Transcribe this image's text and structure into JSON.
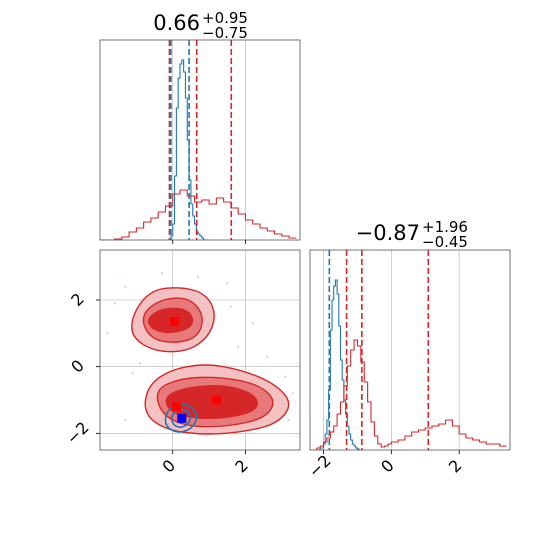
{
  "colors": {
    "red": "#d62728",
    "red_mid": "#e8797a",
    "red_light": "#f3c1c1",
    "blue": "#1f77b4",
    "blue_marker": "#0000ff",
    "red_marker": "#ff0000",
    "grid": "#b0b0b0",
    "axis": "#000000"
  },
  "chart_data": [
    {
      "type": "line",
      "panel": "marginal-x",
      "title_main": "0.66",
      "title_sup": "+0.95",
      "title_sub": "−0.75",
      "xlim": [
        -2.0,
        3.5
      ],
      "ylim": [
        0,
        1
      ],
      "grid": true,
      "series": [
        {
          "color": "blue",
          "step_x": [
            -0.1,
            -0.05,
            0.0,
            0.05,
            0.1,
            0.15,
            0.2,
            0.25,
            0.3,
            0.35,
            0.4,
            0.45,
            0.5,
            0.55,
            0.6,
            0.65,
            0.7,
            0.75,
            0.8,
            0.85,
            0.9,
            0.95
          ],
          "step_y": [
            0.0,
            0.02,
            0.08,
            0.32,
            0.66,
            0.81,
            0.88,
            0.9,
            0.84,
            0.71,
            0.5,
            0.3,
            0.18,
            0.12,
            0.08,
            0.04,
            0.03,
            0.02,
            0.01,
            0.0,
            0.0,
            0.0
          ],
          "lines_x": [
            -0.05,
            0.45
          ],
          "line_style": "dashed"
        },
        {
          "color": "red",
          "step_x": [
            -2.0,
            -1.8,
            -1.6,
            -1.4,
            -1.2,
            -1.0,
            -0.8,
            -0.6,
            -0.4,
            -0.2,
            0.0,
            0.2,
            0.4,
            0.6,
            0.8,
            1.0,
            1.2,
            1.4,
            1.6,
            1.8,
            2.0,
            2.2,
            2.4,
            2.6,
            2.8,
            3.0,
            3.2
          ],
          "step_y": [
            0.0,
            0.0,
            0.005,
            0.015,
            0.04,
            0.06,
            0.09,
            0.11,
            0.14,
            0.17,
            0.23,
            0.25,
            0.22,
            0.19,
            0.2,
            0.18,
            0.21,
            0.19,
            0.16,
            0.13,
            0.1,
            0.08,
            0.06,
            0.045,
            0.03,
            0.02,
            0.01
          ],
          "lines_x": [
            -0.09,
            0.66,
            1.61
          ],
          "line_style": "dashed"
        }
      ]
    },
    {
      "type": "line",
      "panel": "marginal-y",
      "title_main": "−0.87",
      "title_sup": "+1.96",
      "title_sub": "−0.45",
      "xlim": [
        -2.4,
        3.5
      ],
      "ylim": [
        0,
        1
      ],
      "xticks": [
        -2,
        0,
        2
      ],
      "xtick_labels": [
        "−2",
        "0",
        "2"
      ],
      "grid": true,
      "series": [
        {
          "color": "blue",
          "step_x": [
            -2.2,
            -2.1,
            -2.0,
            -1.95,
            -1.9,
            -1.85,
            -1.8,
            -1.75,
            -1.7,
            -1.65,
            -1.6,
            -1.55,
            -1.5,
            -1.45,
            -1.4,
            -1.35,
            -1.3,
            -1.25,
            -1.2,
            -1.15,
            -1.1,
            -1.05,
            -1.0,
            -0.95
          ],
          "step_y": [
            0.0,
            0.01,
            0.03,
            0.08,
            0.15,
            0.3,
            0.6,
            0.75,
            0.82,
            0.85,
            0.78,
            0.62,
            0.45,
            0.35,
            0.25,
            0.18,
            0.12,
            0.08,
            0.05,
            0.03,
            0.02,
            0.01,
            0.005,
            0.0
          ],
          "lines_x": [
            -1.83
          ],
          "line_style": "dashed"
        },
        {
          "color": "red",
          "step_x": [
            -2.3,
            -2.2,
            -2.1,
            -2.0,
            -1.9,
            -1.8,
            -1.7,
            -1.6,
            -1.5,
            -1.4,
            -1.3,
            -1.2,
            -1.1,
            -1.0,
            -0.9,
            -0.8,
            -0.7,
            -0.6,
            -0.5,
            -0.4,
            -0.3,
            -0.2,
            -0.1,
            0.0,
            0.2,
            0.4,
            0.6,
            0.8,
            1.0,
            1.2,
            1.4,
            1.6,
            1.8,
            2.0,
            2.2,
            2.4,
            2.6,
            2.8,
            3.0,
            3.2
          ],
          "step_y": [
            0.0,
            0.01,
            0.02,
            0.04,
            0.06,
            0.09,
            0.12,
            0.18,
            0.24,
            0.32,
            0.42,
            0.5,
            0.55,
            0.52,
            0.44,
            0.34,
            0.24,
            0.14,
            0.07,
            0.03,
            0.015,
            0.02,
            0.03,
            0.04,
            0.05,
            0.07,
            0.09,
            0.1,
            0.11,
            0.12,
            0.13,
            0.15,
            0.12,
            0.08,
            0.06,
            0.05,
            0.04,
            0.03,
            0.03,
            0.02
          ],
          "lines_x": [
            -1.32,
            -0.87,
            1.09
          ],
          "line_style": "dashed"
        }
      ]
    },
    {
      "type": "scatter",
      "panel": "joint",
      "xlim": [
        -2.0,
        3.5
      ],
      "ylim": [
        -2.5,
        3.5
      ],
      "xticks": [
        0,
        2
      ],
      "xtick_labels": [
        "0",
        "2"
      ],
      "yticks": [
        -2,
        0,
        2
      ],
      "ytick_labels": [
        "−2",
        "0",
        "2"
      ],
      "grid": true,
      "red_contours": [
        {
          "level": "outer",
          "blobs": [
            [
              [
                -1.1,
                1.6
              ],
              [
                -0.6,
                2.3
              ],
              [
                0.2,
                2.4
              ],
              [
                0.9,
                2.2
              ],
              [
                1.2,
                1.6
              ],
              [
                1.0,
                0.9
              ],
              [
                0.4,
                0.45
              ],
              [
                -0.5,
                0.45
              ],
              [
                -1.15,
                0.9
              ]
            ],
            [
              [
                -0.7,
                -0.6
              ],
              [
                -0.1,
                -0.1
              ],
              [
                0.9,
                0.1
              ],
              [
                1.9,
                -0.1
              ],
              [
                2.8,
                -0.5
              ],
              [
                3.3,
                -1.1
              ],
              [
                2.9,
                -1.7
              ],
              [
                2.0,
                -1.95
              ],
              [
                0.9,
                -2.05
              ],
              [
                -0.2,
                -1.9
              ],
              [
                -0.8,
                -1.4
              ]
            ]
          ]
        },
        {
          "level": "middle",
          "blobs": [
            [
              [
                -0.9,
                1.5
              ],
              [
                -0.4,
                2.0
              ],
              [
                0.4,
                2.1
              ],
              [
                0.85,
                1.6
              ],
              [
                0.75,
                0.95
              ],
              [
                0.2,
                0.7
              ],
              [
                -0.6,
                0.8
              ]
            ],
            [
              [
                -0.5,
                -0.7
              ],
              [
                0.2,
                -0.35
              ],
              [
                1.2,
                -0.3
              ],
              [
                2.3,
                -0.5
              ],
              [
                2.85,
                -1.0
              ],
              [
                2.55,
                -1.55
              ],
              [
                1.5,
                -1.8
              ],
              [
                0.4,
                -1.8
              ],
              [
                -0.3,
                -1.45
              ]
            ]
          ]
        },
        {
          "level": "inner",
          "blobs": [
            [
              [
                -0.7,
                1.45
              ],
              [
                -0.3,
                1.75
              ],
              [
                0.35,
                1.75
              ],
              [
                0.6,
                1.4
              ],
              [
                0.4,
                1.1
              ],
              [
                -0.2,
                1.0
              ],
              [
                -0.6,
                1.15
              ]
            ],
            [
              [
                -0.2,
                -0.85
              ],
              [
                0.5,
                -0.6
              ],
              [
                1.5,
                -0.55
              ],
              [
                2.3,
                -0.85
              ],
              [
                2.35,
                -1.3
              ],
              [
                1.5,
                -1.55
              ],
              [
                0.5,
                -1.55
              ],
              [
                -0.15,
                -1.3
              ]
            ]
          ]
        }
      ],
      "blue_contours": [
        [
          [
            -0.2,
            -1.4
          ],
          [
            0.1,
            -1.1
          ],
          [
            0.45,
            -1.15
          ],
          [
            0.7,
            -1.45
          ],
          [
            0.55,
            -1.85
          ],
          [
            0.15,
            -2.0
          ],
          [
            -0.2,
            -1.8
          ]
        ],
        [
          [
            -0.05,
            -1.45
          ],
          [
            0.2,
            -1.25
          ],
          [
            0.45,
            -1.35
          ],
          [
            0.5,
            -1.65
          ],
          [
            0.25,
            -1.85
          ],
          [
            0.0,
            -1.75
          ]
        ]
      ],
      "markers": [
        {
          "x": 0.05,
          "y": 1.35,
          "color": "red_marker"
        },
        {
          "x": 0.1,
          "y": -1.2,
          "color": "red_marker"
        },
        {
          "x": 1.2,
          "y": -1.0,
          "color": "red_marker"
        },
        {
          "x": 0.25,
          "y": -1.55,
          "color": "blue_marker"
        }
      ],
      "scatter_points": [
        [
          -1.6,
          1.9
        ],
        [
          -1.3,
          2.4
        ],
        [
          1.5,
          2.5
        ],
        [
          1.6,
          1.8
        ],
        [
          -1.8,
          1.0
        ],
        [
          2.2,
          1.3
        ],
        [
          3.1,
          -0.3
        ],
        [
          3.3,
          -0.8
        ],
        [
          -1.1,
          -0.2
        ],
        [
          -1.3,
          -1.6
        ],
        [
          2.6,
          0.3
        ],
        [
          1.8,
          0.6
        ],
        [
          -0.3,
          2.8
        ],
        [
          0.7,
          2.7
        ],
        [
          3.2,
          -1.6
        ],
        [
          -0.9,
          0.1
        ]
      ]
    }
  ]
}
